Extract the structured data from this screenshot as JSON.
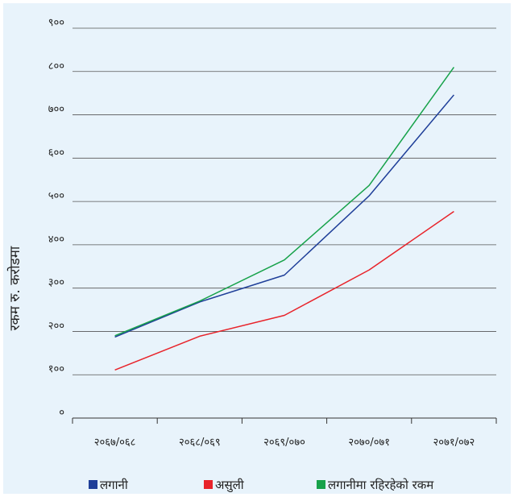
{
  "chart_data": {
    "type": "line",
    "title": "",
    "xlabel": "",
    "ylabel": "रकम रु. करोडमा",
    "categories": [
      "२०६७/०६८",
      "२०६८/०६९",
      "२०६९/०७०",
      "२०७०/०७१",
      "२०७१/०७२"
    ],
    "y_ticks": [
      "०",
      "१००",
      "२००",
      "३००",
      "४००",
      "५००",
      "६००",
      "७००",
      "८००",
      "९००"
    ],
    "ylim": [
      0,
      900
    ],
    "grid": true,
    "legend_position": "bottom",
    "series": [
      {
        "name": "लगानी",
        "color": "#1f3f99",
        "values": [
          187,
          268,
          330,
          513,
          746
        ]
      },
      {
        "name": "असुली",
        "color": "#e8232a",
        "values": [
          111,
          189,
          237,
          342,
          477
        ]
      },
      {
        "name": "लगानीमा रहिरहेको रकम",
        "color": "#17a24a",
        "values": [
          190,
          270,
          365,
          537,
          810
        ]
      }
    ]
  }
}
